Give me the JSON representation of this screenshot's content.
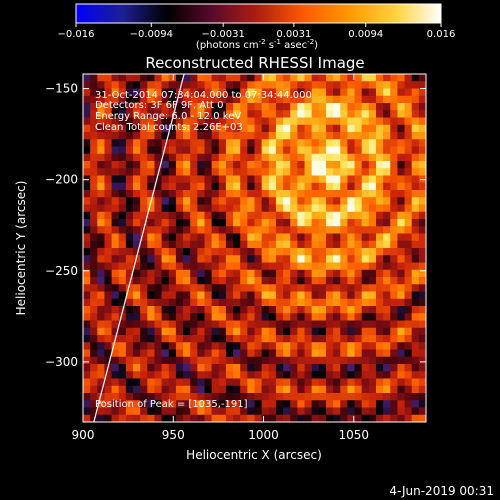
{
  "colorbar": {
    "ticks": [
      "−0.016",
      "−0.0094",
      "−0.0031",
      "0.0031",
      "0.0094",
      "0.016"
    ],
    "units_main": "(photons cm",
    "units_exp1": "-2",
    "units_mid": " s",
    "units_exp2": "-1",
    "units_tail": " asec",
    "units_exp3": "-2",
    "units_close": ")",
    "colors": [
      "#0000ff",
      "#1e1e96",
      "#000000",
      "#5a0a2a",
      "#b01f10",
      "#ff5a00",
      "#ff9a00",
      "#ffd23c",
      "#ffffff"
    ]
  },
  "annotations": {
    "time": "31-Oct-2014 07:34:04.000 to 07:34:44.000",
    "detectors": "Detectors: 3F 6F 9F, Att 0",
    "energy": "Energy Range: 6.0 - 12.0 keV",
    "clean": "Clean    Total counts: 2.26E+03",
    "peak": "Position of Peak = [1035,-191]"
  },
  "footer": {
    "date": "4-Jun-2019 00:31"
  },
  "chart_data": {
    "type": "heatmap",
    "title": "Reconstructed RHESSI Image",
    "xlabel": "Heliocentric X (arcsec)",
    "ylabel": "Heliocentric Y (arcsec)",
    "xlim": [
      900,
      1090
    ],
    "ylim": [
      -333,
      -142
    ],
    "x_ticks": [
      900,
      950,
      1000,
      1050
    ],
    "x_tick_labels": [
      "900",
      "950",
      "1000",
      "1050"
    ],
    "y_ticks": [
      -150,
      -200,
      -250,
      -300
    ],
    "y_tick_labels": [
      "−150",
      "−200",
      "−250",
      "−300"
    ],
    "color_range": [
      -0.016,
      0.016
    ],
    "peak_position": [
      1035,
      -191
    ],
    "limb_line": [
      [
        906,
        -333
      ],
      [
        956,
        -142
      ]
    ]
  }
}
